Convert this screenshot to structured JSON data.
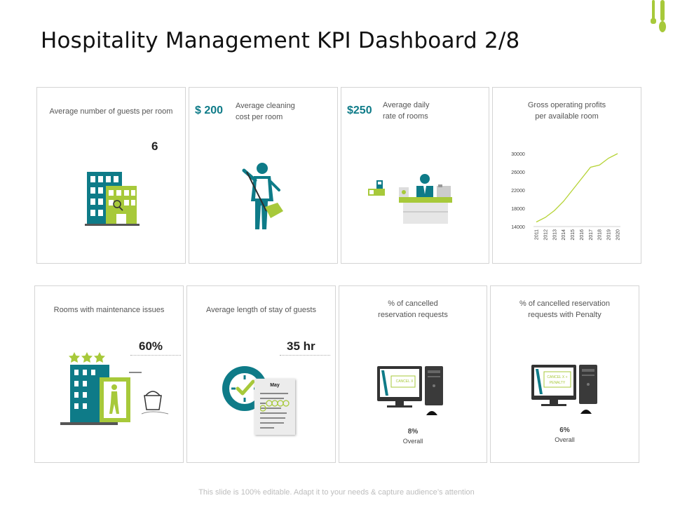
{
  "title": "Hospitality Management KPI Dashboard 2/8",
  "cards": {
    "guests": {
      "label": "Average number of guests per room",
      "value": "6"
    },
    "cleaning": {
      "value": "$ 200",
      "label_line1": "Average cleaning",
      "label_line2": "cost per room"
    },
    "daily_rate": {
      "value": "$250",
      "label_line1": "Average daily",
      "label_line2": "rate of rooms"
    },
    "gop": {
      "label_line1": "Gross operating profits",
      "label_line2": "per available room"
    },
    "maintenance": {
      "label": "Rooms with maintenance issues",
      "value": "60%"
    },
    "stay": {
      "label": "Average length of stay of guests",
      "value": "35 hr",
      "calendar_month": "May"
    },
    "cancelled": {
      "label_line1": "% of cancelled",
      "label_line2": "reservation requests",
      "value": "8%",
      "sub": "Overall",
      "screen_text": "CANCEL X"
    },
    "penalty": {
      "label_line1": "% of cancelled reservation",
      "label_line2": "requests with Penalty",
      "value": "6%",
      "sub": "Overall",
      "screen_text_1": "CANCEL X +",
      "screen_text_2": "PENALTY"
    }
  },
  "chart_data": {
    "type": "line",
    "title": "Gross operating profits per available room",
    "x": [
      "2011",
      "2012",
      "2013",
      "2014",
      "2015",
      "2016",
      "2017",
      "2018",
      "2019",
      "2020"
    ],
    "series": [
      {
        "values": [
          15000,
          16000,
          17500,
          19500,
          22000,
          24500,
          27000,
          27500,
          29000,
          30000
        ]
      }
    ],
    "ylim": [
      14000,
      30000
    ],
    "yticks": [
      14000,
      18000,
      22000,
      26000,
      30000
    ],
    "ytick_labels": [
      "14000",
      "18000",
      "22000",
      "26000",
      "30000"
    ],
    "line_color": "#b5d334",
    "grid": false
  },
  "colors": {
    "teal": "#0e7b88",
    "green": "#a7c93a",
    "dark": "#2d2d2d",
    "gray": "#555555"
  },
  "footer": "This slide is 100% editable. Adapt it to your needs & capture audience’s attention"
}
